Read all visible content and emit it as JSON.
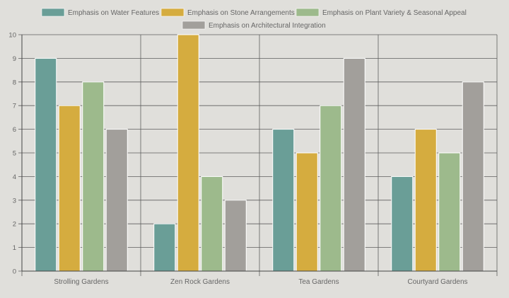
{
  "chart_data": {
    "type": "bar",
    "categories": [
      "Strolling Gardens",
      "Zen Rock Gardens",
      "Tea Gardens",
      "Courtyard Gardens"
    ],
    "series": [
      {
        "name": "Emphasis on Water Features",
        "values": [
          9,
          2,
          6,
          4
        ],
        "color": "#6a9e97"
      },
      {
        "name": "Emphasis on Stone Arrangements",
        "values": [
          7,
          10,
          5,
          6
        ],
        "color": "#d5ac3f"
      },
      {
        "name": "Emphasis on Plant Variety & Seasonal Appeal",
        "values": [
          8,
          4,
          7,
          5
        ],
        "color": "#9dba8c"
      },
      {
        "name": "Emphasis on Architectural Integration",
        "values": [
          6,
          3,
          9,
          8
        ],
        "color": "#a29f9b"
      }
    ],
    "yticks": [
      "0",
      "1",
      "2",
      "3",
      "4",
      "5",
      "6",
      "7",
      "8",
      "9",
      "10"
    ],
    "ylim": [
      0,
      10
    ],
    "grid": true,
    "legend": "top"
  }
}
